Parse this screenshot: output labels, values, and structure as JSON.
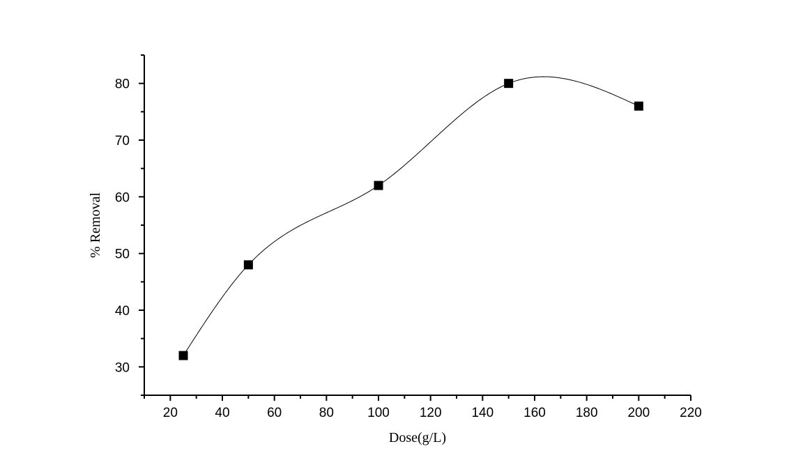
{
  "chart_data": {
    "type": "scatter",
    "title": "",
    "xlabel": "Dose(g/L)",
    "ylabel": "% Removal",
    "xlim": [
      10,
      220
    ],
    "ylim": [
      25,
      85
    ],
    "x_ticks": [
      20,
      40,
      60,
      80,
      100,
      120,
      140,
      160,
      180,
      200,
      220
    ],
    "y_ticks": [
      30,
      40,
      50,
      60,
      70,
      80
    ],
    "grid": false,
    "legend": "none",
    "marker": "square",
    "line": "smooth-spline",
    "series": [
      {
        "x": [
          25,
          50,
          100,
          150,
          200
        ],
        "y": [
          32,
          48,
          62,
          80,
          76
        ]
      }
    ]
  }
}
